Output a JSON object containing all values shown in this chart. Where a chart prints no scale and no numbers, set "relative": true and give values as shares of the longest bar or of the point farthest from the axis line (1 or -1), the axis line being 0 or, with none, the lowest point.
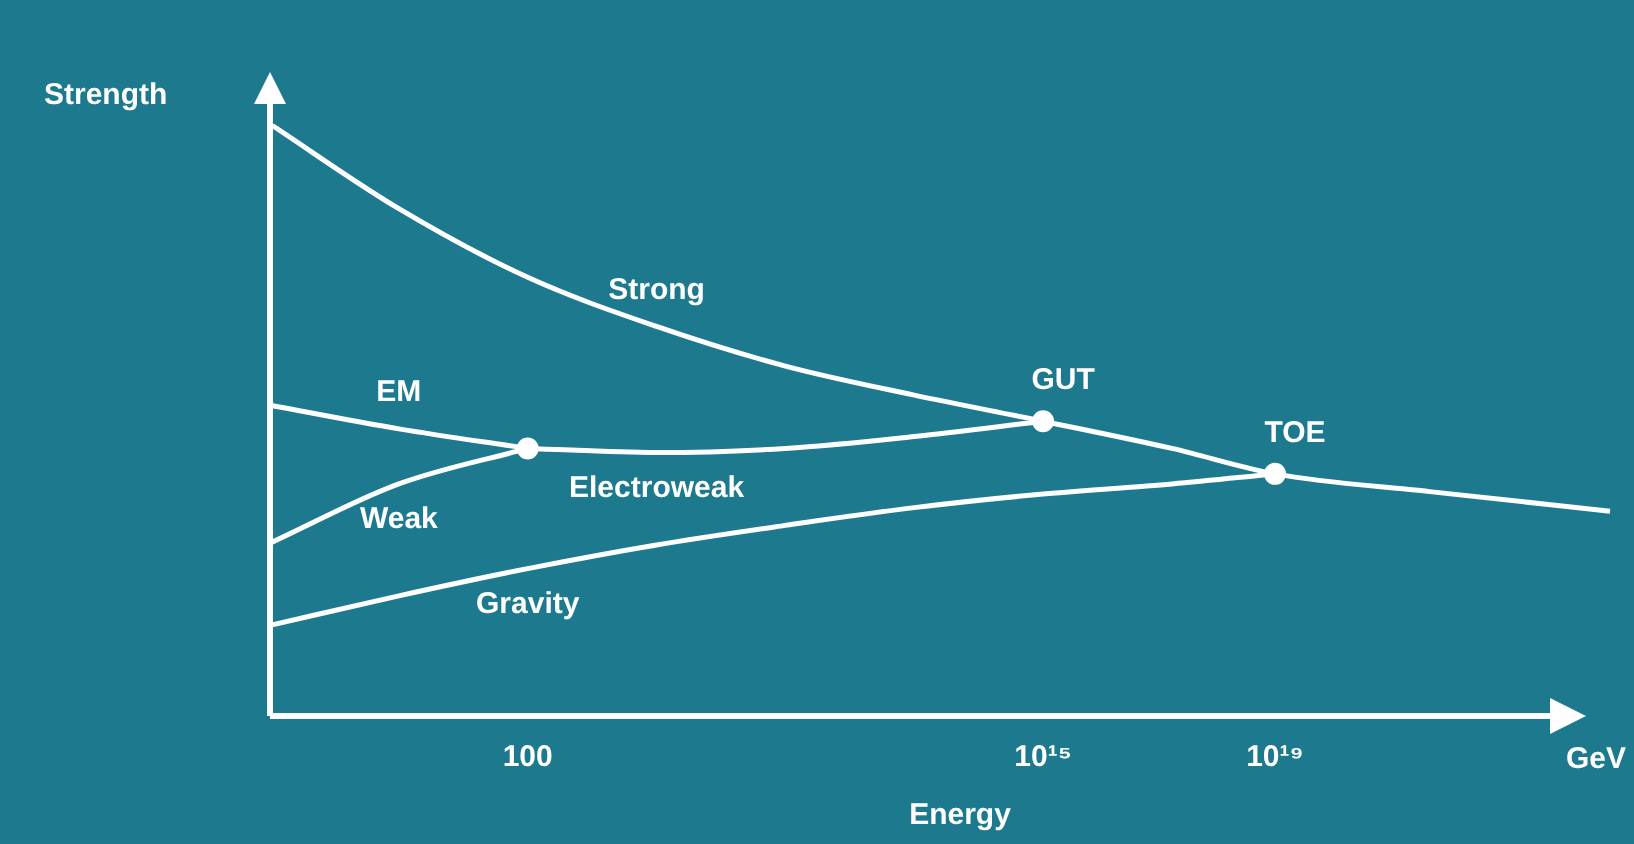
{
  "chart_data": {
    "type": "line",
    "relative": true,
    "xlabel": "Energy",
    "ylabel": "Strength",
    "marker": "none",
    "legend": false,
    "tick_labels": "x",
    "categories": [
      null,
      null,
      null,
      null,
      null,
      null,
      null,
      null,
      null,
      null,
      "100",
      null,
      null,
      null,
      null,
      null,
      null,
      null,
      null,
      null,
      null,
      null,
      null,
      null,
      null,
      null,
      null,
      null,
      null,
      null,
      "10¹⁵",
      null,
      null,
      null,
      null,
      null,
      null,
      null,
      null,
      "10¹⁹",
      null,
      null,
      null,
      null,
      null,
      null,
      null,
      null,
      null,
      null,
      null,
      null,
      null
    ],
    "series": [
      {
        "name": "Strong",
        "color": "#ffffff",
        "values": [
          1.0,
          null,
          null,
          null,
          null,
          0.857,
          null,
          null,
          null,
          null,
          0.741,
          null,
          null,
          null,
          null,
          0.658,
          null,
          null,
          null,
          null,
          0.591,
          null,
          null,
          null,
          null,
          0.542,
          null,
          null,
          null,
          null,
          0.498,
          null,
          null,
          null,
          null,
          0.452,
          null,
          null,
          null,
          0.409,
          null,
          null,
          null,
          null,
          null,
          0.379,
          null,
          null,
          null,
          null,
          null,
          null,
          0.346
        ]
      },
      {
        "name": "EM",
        "color": "#ffffff",
        "values": [
          0.525,
          null,
          null,
          null,
          null,
          0.485,
          null,
          null,
          null,
          null,
          0.452,
          null,
          null,
          null,
          null,
          null,
          null,
          null,
          null,
          null,
          null,
          null,
          null,
          null,
          null,
          null,
          null,
          null,
          null,
          null,
          null,
          null,
          null,
          null,
          null,
          null,
          null,
          null,
          null,
          null,
          null,
          null,
          null,
          null,
          null,
          null,
          null,
          null,
          null,
          null,
          null,
          null,
          null
        ]
      },
      {
        "name": "Weak",
        "color": "#ffffff",
        "values": [
          0.292,
          null,
          null,
          null,
          null,
          0.392,
          null,
          null,
          null,
          null,
          0.452,
          null,
          null,
          null,
          null,
          null,
          null,
          null,
          null,
          null,
          null,
          null,
          null,
          null,
          null,
          null,
          null,
          null,
          null,
          null,
          null,
          null,
          null,
          null,
          null,
          null,
          null,
          null,
          null,
          null,
          null,
          null,
          null,
          null,
          null,
          null,
          null,
          null,
          null,
          null,
          null,
          null,
          null
        ]
      },
      {
        "name": "Electroweak",
        "color": "#ffffff",
        "values": [
          null,
          null,
          null,
          null,
          null,
          null,
          null,
          null,
          null,
          null,
          0.452,
          null,
          null,
          null,
          null,
          0.445,
          null,
          null,
          null,
          null,
          0.452,
          null,
          null,
          null,
          null,
          0.472,
          null,
          null,
          null,
          null,
          0.498,
          null,
          null,
          null,
          null,
          null,
          null,
          null,
          null,
          null,
          null,
          null,
          null,
          null,
          null,
          null,
          null,
          null,
          null,
          null,
          null,
          null,
          null
        ]
      },
      {
        "name": "Gravity",
        "color": "#ffffff",
        "values": [
          0.153,
          null,
          null,
          null,
          null,
          0.203,
          null,
          null,
          null,
          null,
          0.249,
          null,
          null,
          null,
          null,
          0.289,
          null,
          null,
          null,
          null,
          0.322,
          null,
          null,
          null,
          null,
          0.352,
          null,
          null,
          null,
          null,
          0.375,
          null,
          null,
          null,
          null,
          0.392,
          null,
          null,
          null,
          0.409,
          null,
          null,
          null,
          null,
          null,
          null,
          null,
          null,
          null,
          null,
          null,
          null,
          null
        ]
      },
      {
        "type": "scatter",
        "marker": "circle",
        "color": "#ffffff",
        "values": [
          null,
          null,
          null,
          null,
          null,
          null,
          null,
          null,
          null,
          null,
          0.452,
          null,
          null,
          null,
          null,
          null,
          null,
          null,
          null,
          null,
          null,
          null,
          null,
          null,
          null,
          null,
          null,
          null,
          null,
          null,
          0.498,
          null,
          null,
          null,
          null,
          null,
          null,
          null,
          null,
          0.409,
          null,
          null,
          null,
          null,
          null,
          null,
          null,
          null,
          null,
          null,
          null,
          null,
          null
        ]
      }
    ],
    "annotations": [
      {
        "text": "GUT",
        "x": "10¹⁵",
        "y": 0.498
      },
      {
        "text": "TOE",
        "x": "10¹⁹",
        "y": 0.409
      },
      "GeV"
    ]
  }
}
